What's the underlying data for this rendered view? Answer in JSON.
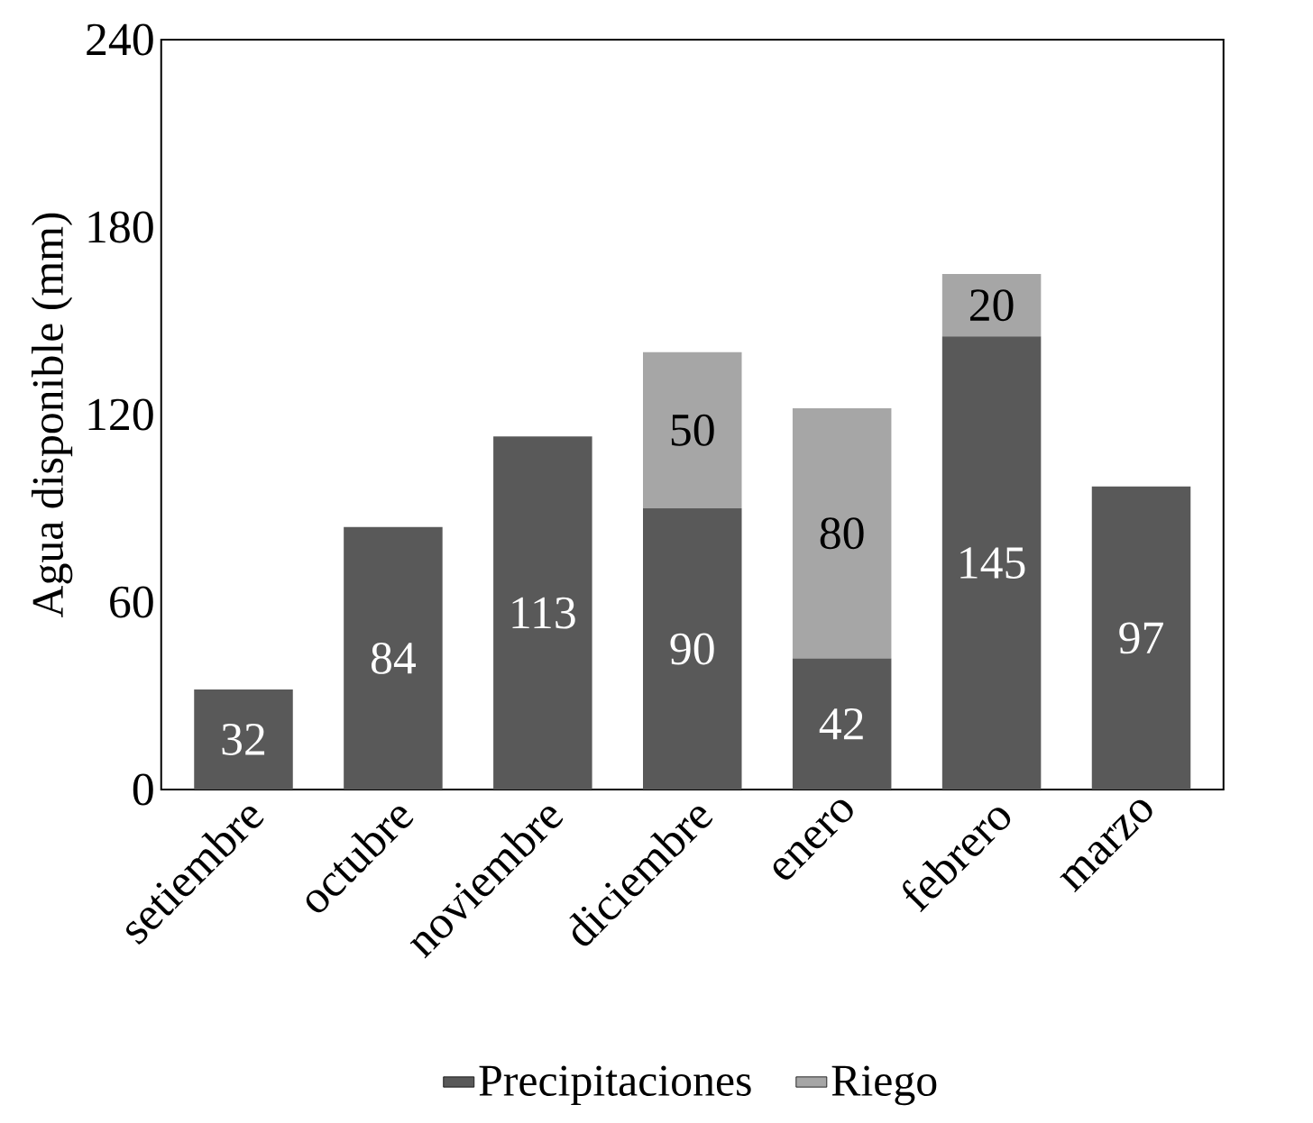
{
  "chart_data": {
    "type": "bar",
    "stacked": true,
    "ylabel": "Agua disponible (mm)",
    "categories": [
      "setiembre",
      "octubre",
      "noviembre",
      "diciembre",
      "enero",
      "febrero",
      "marzo"
    ],
    "series": [
      {
        "name": "Precipitaciones",
        "color": "#595959",
        "values": [
          32,
          84,
          113,
          90,
          42,
          145,
          97
        ]
      },
      {
        "name": "Riego",
        "color": "#a6a6a6",
        "values": [
          null,
          null,
          null,
          50,
          80,
          20,
          null
        ]
      }
    ],
    "ylim": [
      0,
      240
    ],
    "yticks": [
      0,
      60,
      120,
      180,
      240
    ],
    "grid": false,
    "legend": "bottom",
    "data_labels": true
  }
}
